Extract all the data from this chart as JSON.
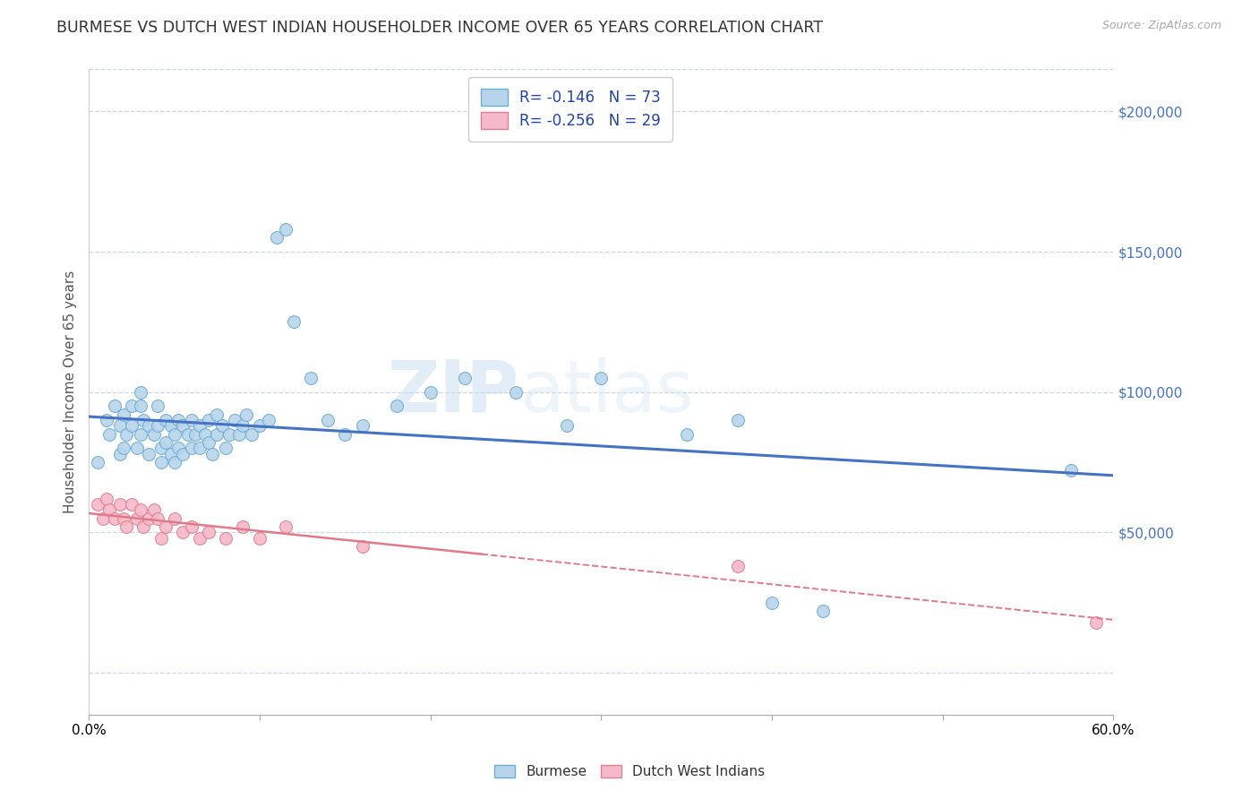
{
  "title": "BURMESE VS DUTCH WEST INDIAN HOUSEHOLDER INCOME OVER 65 YEARS CORRELATION CHART",
  "source": "Source: ZipAtlas.com",
  "ylabel": "Householder Income Over 65 years",
  "xlim": [
    0.0,
    0.6
  ],
  "ylim": [
    -15000,
    215000
  ],
  "yticks": [
    0,
    50000,
    100000,
    150000,
    200000
  ],
  "ytick_labels": [
    "",
    "$50,000",
    "$100,000",
    "$150,000",
    "$200,000"
  ],
  "legend1_label": "R= -0.146   N = 73",
  "legend2_label": "R= -0.256   N = 29",
  "watermark_zip": "ZIP",
  "watermark_atlas": "atlas",
  "burmese_color": "#b8d4ea",
  "burmese_edge": "#6aaed6",
  "dutch_color": "#f4b8c8",
  "dutch_edge": "#e08090",
  "trendline_blue": "#4472c4",
  "trendline_pink": "#e07a8a",
  "grid_color": "#c8d8e8",
  "burmese_x": [
    0.005,
    0.01,
    0.012,
    0.015,
    0.018,
    0.018,
    0.02,
    0.02,
    0.022,
    0.025,
    0.025,
    0.028,
    0.03,
    0.03,
    0.03,
    0.032,
    0.035,
    0.035,
    0.038,
    0.04,
    0.04,
    0.042,
    0.042,
    0.045,
    0.045,
    0.048,
    0.048,
    0.05,
    0.05,
    0.052,
    0.052,
    0.055,
    0.055,
    0.058,
    0.06,
    0.06,
    0.062,
    0.065,
    0.065,
    0.068,
    0.07,
    0.07,
    0.072,
    0.075,
    0.075,
    0.078,
    0.08,
    0.082,
    0.085,
    0.088,
    0.09,
    0.092,
    0.095,
    0.1,
    0.105,
    0.11,
    0.115,
    0.12,
    0.13,
    0.14,
    0.15,
    0.16,
    0.18,
    0.2,
    0.22,
    0.25,
    0.28,
    0.3,
    0.35,
    0.38,
    0.4,
    0.43,
    0.575
  ],
  "burmese_y": [
    75000,
    90000,
    85000,
    95000,
    88000,
    78000,
    92000,
    80000,
    85000,
    95000,
    88000,
    80000,
    100000,
    95000,
    85000,
    90000,
    88000,
    78000,
    85000,
    95000,
    88000,
    80000,
    75000,
    90000,
    82000,
    88000,
    78000,
    85000,
    75000,
    90000,
    80000,
    88000,
    78000,
    85000,
    90000,
    80000,
    85000,
    88000,
    80000,
    85000,
    90000,
    82000,
    78000,
    85000,
    92000,
    88000,
    80000,
    85000,
    90000,
    85000,
    88000,
    92000,
    85000,
    88000,
    90000,
    155000,
    158000,
    125000,
    105000,
    90000,
    85000,
    88000,
    95000,
    100000,
    105000,
    100000,
    88000,
    105000,
    85000,
    90000,
    25000,
    22000,
    72000
  ],
  "dutch_x": [
    0.005,
    0.008,
    0.01,
    0.012,
    0.015,
    0.018,
    0.02,
    0.022,
    0.025,
    0.028,
    0.03,
    0.032,
    0.035,
    0.038,
    0.04,
    0.042,
    0.045,
    0.05,
    0.055,
    0.06,
    0.065,
    0.07,
    0.08,
    0.09,
    0.1,
    0.115,
    0.16,
    0.38,
    0.59
  ],
  "dutch_y": [
    60000,
    55000,
    62000,
    58000,
    55000,
    60000,
    55000,
    52000,
    60000,
    55000,
    58000,
    52000,
    55000,
    58000,
    55000,
    48000,
    52000,
    55000,
    50000,
    52000,
    48000,
    50000,
    48000,
    52000,
    48000,
    52000,
    45000,
    38000,
    18000
  ]
}
